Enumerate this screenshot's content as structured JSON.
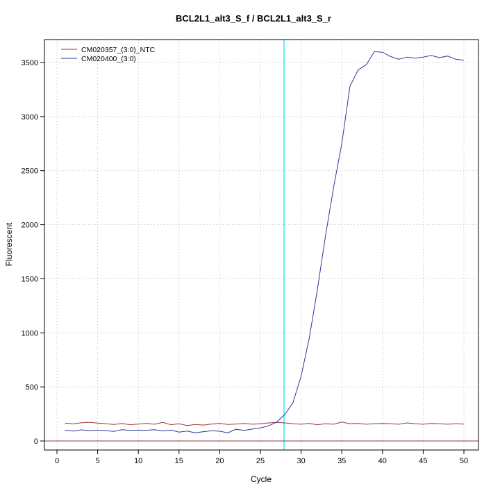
{
  "page": {
    "background": "#ffffff"
  },
  "chart_data": {
    "type": "line",
    "title": "BCL2L1_alt3_S_f / BCL2L1_alt3_S_r",
    "xlabel": "Cycle",
    "ylabel": "Fluorescent",
    "xlim": [
      0,
      50
    ],
    "ylim": [
      0,
      3700
    ],
    "x_ticks": [
      0,
      5,
      10,
      15,
      20,
      25,
      30,
      35,
      40,
      45,
      50
    ],
    "y_ticks": [
      0,
      500,
      1000,
      1500,
      2000,
      2500,
      3000,
      3500
    ],
    "grid": "dotted",
    "legend_position": "top-left",
    "x": [
      1,
      2,
      3,
      4,
      5,
      6,
      7,
      8,
      9,
      10,
      11,
      12,
      13,
      14,
      15,
      16,
      17,
      18,
      19,
      20,
      21,
      22,
      23,
      24,
      25,
      26,
      27,
      28,
      29,
      30,
      31,
      32,
      33,
      34,
      35,
      36,
      37,
      38,
      39,
      40,
      41,
      42,
      43,
      44,
      45,
      46,
      47,
      48,
      49,
      50
    ],
    "series": [
      {
        "name": "CM020357_(3:0)_NTC",
        "color": "#993333",
        "values": [
          165,
          158,
          168,
          172,
          165,
          160,
          152,
          162,
          150,
          157,
          162,
          155,
          172,
          150,
          160,
          142,
          152,
          147,
          157,
          163,
          152,
          157,
          162,
          155,
          160,
          167,
          172,
          167,
          160,
          155,
          162,
          150,
          160,
          155,
          175,
          160,
          162,
          155,
          160,
          162,
          160,
          155,
          167,
          160,
          155,
          162,
          160,
          155,
          160,
          157
        ]
      },
      {
        "name": "CM020400_(3:0)",
        "color": "#333399",
        "values": [
          100,
          92,
          103,
          95,
          100,
          96,
          88,
          104,
          98,
          100,
          99,
          104,
          93,
          100,
          82,
          92,
          76,
          86,
          95,
          90,
          76,
          108,
          98,
          110,
          120,
          140,
          175,
          245,
          355,
          600,
          950,
          1400,
          1900,
          2350,
          2750,
          3280,
          3430,
          3480,
          3600,
          3595,
          3555,
          3530,
          3550,
          3540,
          3550,
          3565,
          3545,
          3560,
          3530,
          3520
        ]
      }
    ],
    "threshold_line": {
      "y": 0,
      "color": "#993333"
    },
    "ct_line": {
      "x": 27.9,
      "color": "#00e5e5"
    }
  }
}
